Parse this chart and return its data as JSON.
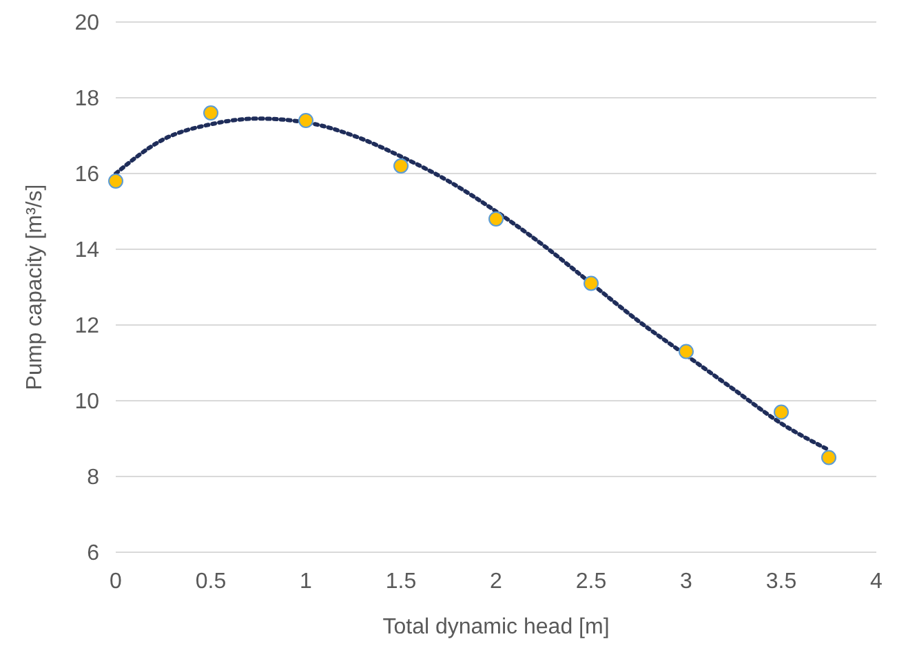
{
  "chart_data": {
    "type": "scatter",
    "xlabel": "Total dynamic head [m]",
    "ylabel": "Pump capacity [m³/s]",
    "xlim": [
      0,
      4
    ],
    "xticks": [
      0,
      0.5,
      1,
      1.5,
      2,
      2.5,
      3,
      3.5,
      4
    ],
    "ylim": [
      6,
      20
    ],
    "yticks": [
      6,
      8,
      10,
      12,
      14,
      16,
      18,
      20
    ],
    "grid": "y",
    "series": [
      {
        "type": "line",
        "color": "#1f2d5a",
        "line_style": "dotted",
        "marker": "none",
        "x": [
          0,
          0.25,
          0.5,
          0.75,
          1,
          1.25,
          1.5,
          1.75,
          2,
          2.25,
          2.5,
          2.75,
          3,
          3.25,
          3.5,
          3.75
        ],
        "values": [
          16.0,
          16.9,
          17.3,
          17.45,
          17.35,
          17.0,
          16.45,
          15.8,
          15.0,
          14.1,
          13.1,
          12.1,
          11.2,
          10.3,
          9.4,
          8.7
        ]
      },
      {
        "type": "scatter",
        "marker": "circle",
        "color": "#ffc000",
        "x": [
          0,
          0.5,
          1,
          1.5,
          2,
          2.5,
          3,
          3.5,
          3.75
        ],
        "values": [
          15.8,
          17.6,
          17.4,
          16.2,
          14.8,
          13.1,
          11.3,
          9.7,
          8.5
        ]
      }
    ]
  }
}
